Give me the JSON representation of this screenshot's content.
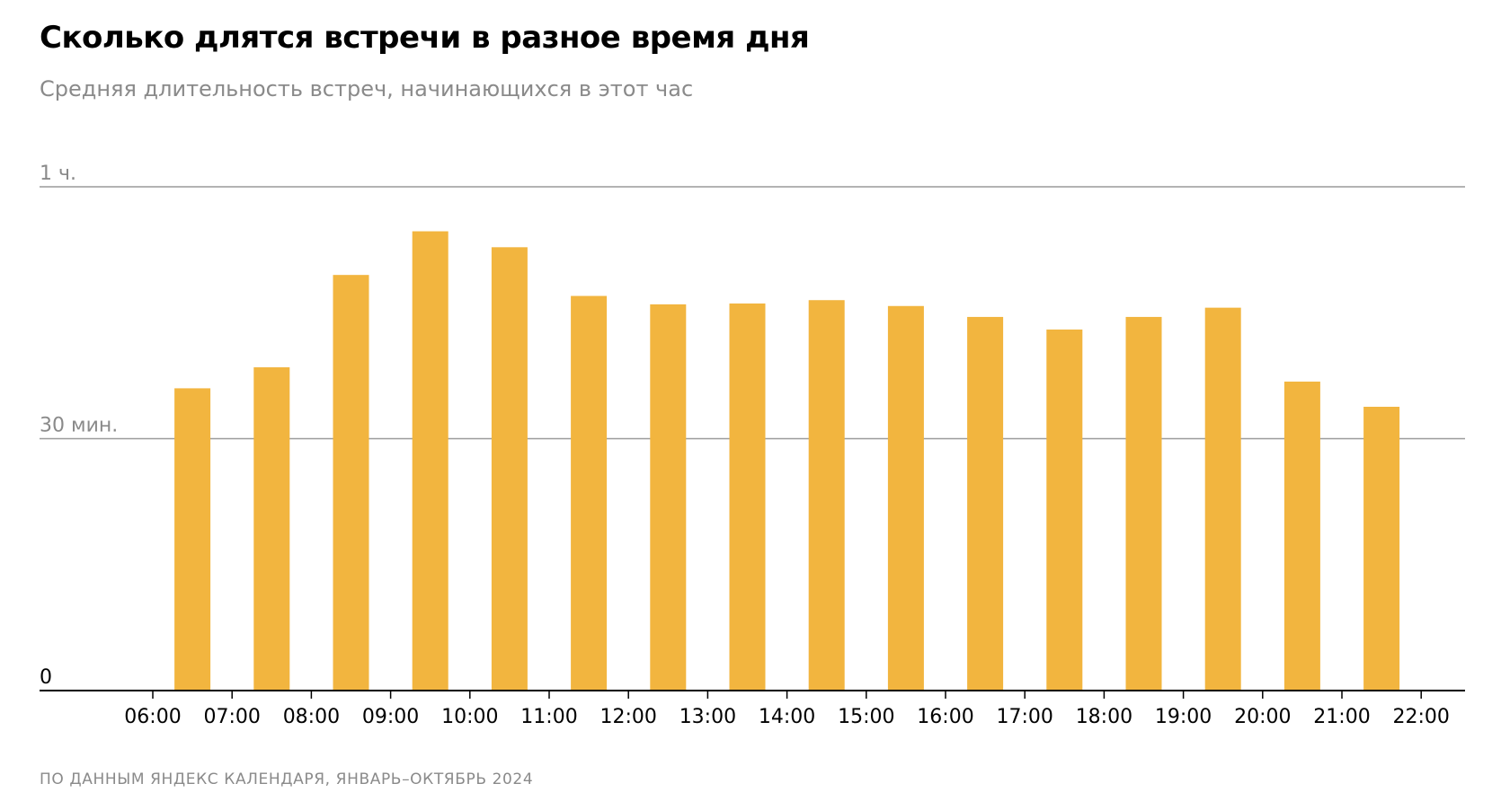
{
  "title": "Сколько длятся встречи в разное время дня",
  "subtitle": "Средняя длительность встреч, начинающихся в этот час",
  "source": "ПО ДАННЫМ ЯНДЕКС КАЛЕНДАРЯ, ЯНВАРЬ–ОКТЯБРЬ 2024",
  "colors": {
    "bar": "#F2B53F",
    "gridline": "#9a9a9a",
    "axis": "#000000"
  },
  "chart_data": {
    "type": "bar",
    "title": "Сколько длятся встречи в разное время дня",
    "subtitle": "Средняя длительность встреч, начинающихся в этот час",
    "x_tick_labels": [
      "06:00",
      "07:00",
      "08:00",
      "09:00",
      "10:00",
      "11:00",
      "12:00",
      "13:00",
      "14:00",
      "15:00",
      "16:00",
      "17:00",
      "18:00",
      "19:00",
      "20:00",
      "21:00",
      "22:00"
    ],
    "categories": [
      "06:00",
      "07:00",
      "08:00",
      "09:00",
      "10:00",
      "11:00",
      "12:00",
      "13:00",
      "14:00",
      "15:00",
      "16:00",
      "17:00",
      "18:00",
      "19:00",
      "20:00",
      "21:00"
    ],
    "values": [
      36,
      38.5,
      49.5,
      54.7,
      52.8,
      47,
      46,
      46.1,
      46.5,
      45.8,
      44.5,
      43,
      44.5,
      45.6,
      36.8,
      33.8
    ],
    "unit": "minutes",
    "ylim": [
      0,
      60
    ],
    "y_ticks": [
      {
        "value": 0,
        "label": "0"
      },
      {
        "value": 30,
        "label": "30 мин."
      },
      {
        "value": 60,
        "label": "1 ч."
      }
    ],
    "grid": true,
    "legend": "none"
  }
}
